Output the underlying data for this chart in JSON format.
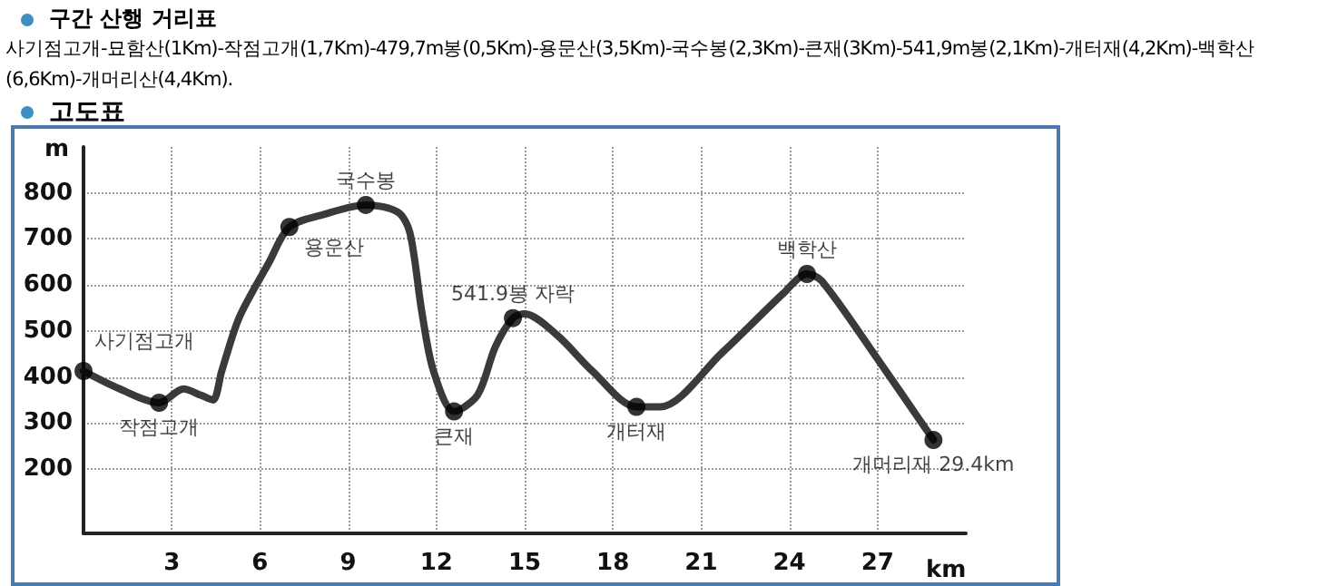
{
  "chart_data": {
    "type": "line",
    "title": "구간 산행 거리표",
    "subtitle": "사기점고개-묘함산(1Km)-작점고개(1,7Km)-479,7m봉(0,5Km)-용문산(3,5Km)-국수봉(2,3Km)-큰재(3Km)-541,9m봉(2,1Km)-개터재(4,2Km)-백학산(6,6Km)-개머리산(4,4Km).",
    "xlabel": "km",
    "ylabel": "m",
    "xlim": [
      0,
      30
    ],
    "xticks": [
      3,
      6,
      9,
      12,
      15,
      18,
      21,
      24,
      27
    ],
    "ylim": [
      60,
      900
    ],
    "yticks": [
      200,
      300,
      400,
      500,
      600,
      700,
      800
    ],
    "grid": true,
    "series": [
      {
        "color": "#3a3a3a",
        "marker": "none",
        "line_style": "solid",
        "x": [
          0,
          1.2,
          2.57,
          3.4,
          4.0,
          4.4,
          4.7,
          5.3,
          6.3,
          7.0,
          8.2,
          9.6,
          10.7,
          11.1,
          11.5,
          11.9,
          12.6,
          13.4,
          14.0,
          14.6,
          15.0,
          16.1,
          17.3,
          18.8,
          19.6,
          21.7,
          23.8,
          24.6,
          25.1,
          27.0,
          28.9
        ],
        "values": [
          413,
          375,
          344,
          374,
          360,
          350,
          413,
          530,
          648,
          726,
          754,
          774,
          758,
          713,
          543,
          413,
          325,
          361,
          465,
          528,
          537,
          491,
          413,
          335,
          335,
          452,
          582,
          624,
          609,
          439,
          263
        ]
      },
      {
        "type": "scatter",
        "color": "#000000",
        "marker": "circle",
        "x": [
          0,
          2.57,
          7.0,
          9.6,
          12.6,
          14.6,
          18.8,
          24.6,
          28.9
        ],
        "values": [
          413,
          344,
          726,
          774,
          325,
          528,
          335,
          624,
          263
        ]
      }
    ],
    "annotations": [
      "고도표",
      {
        "text": "사기점고개",
        "x": 0,
        "y": 413
      },
      {
        "text": "작점고개",
        "x": 2.57,
        "y": 344
      },
      {
        "text": "용운산",
        "x": 7.0,
        "y": 726
      },
      {
        "text": "국수봉",
        "x": 9.6,
        "y": 774
      },
      {
        "text": "큰재",
        "x": 12.6,
        "y": 325
      },
      {
        "text": "541.9봉 자락",
        "x": 14.6,
        "y": 528
      },
      {
        "text": "개터재",
        "x": 18.8,
        "y": 335
      },
      {
        "text": "백학산",
        "x": 24.6,
        "y": 624
      },
      {
        "text": "개머리재 29.4km",
        "x": 28.9,
        "y": 263
      }
    ]
  }
}
